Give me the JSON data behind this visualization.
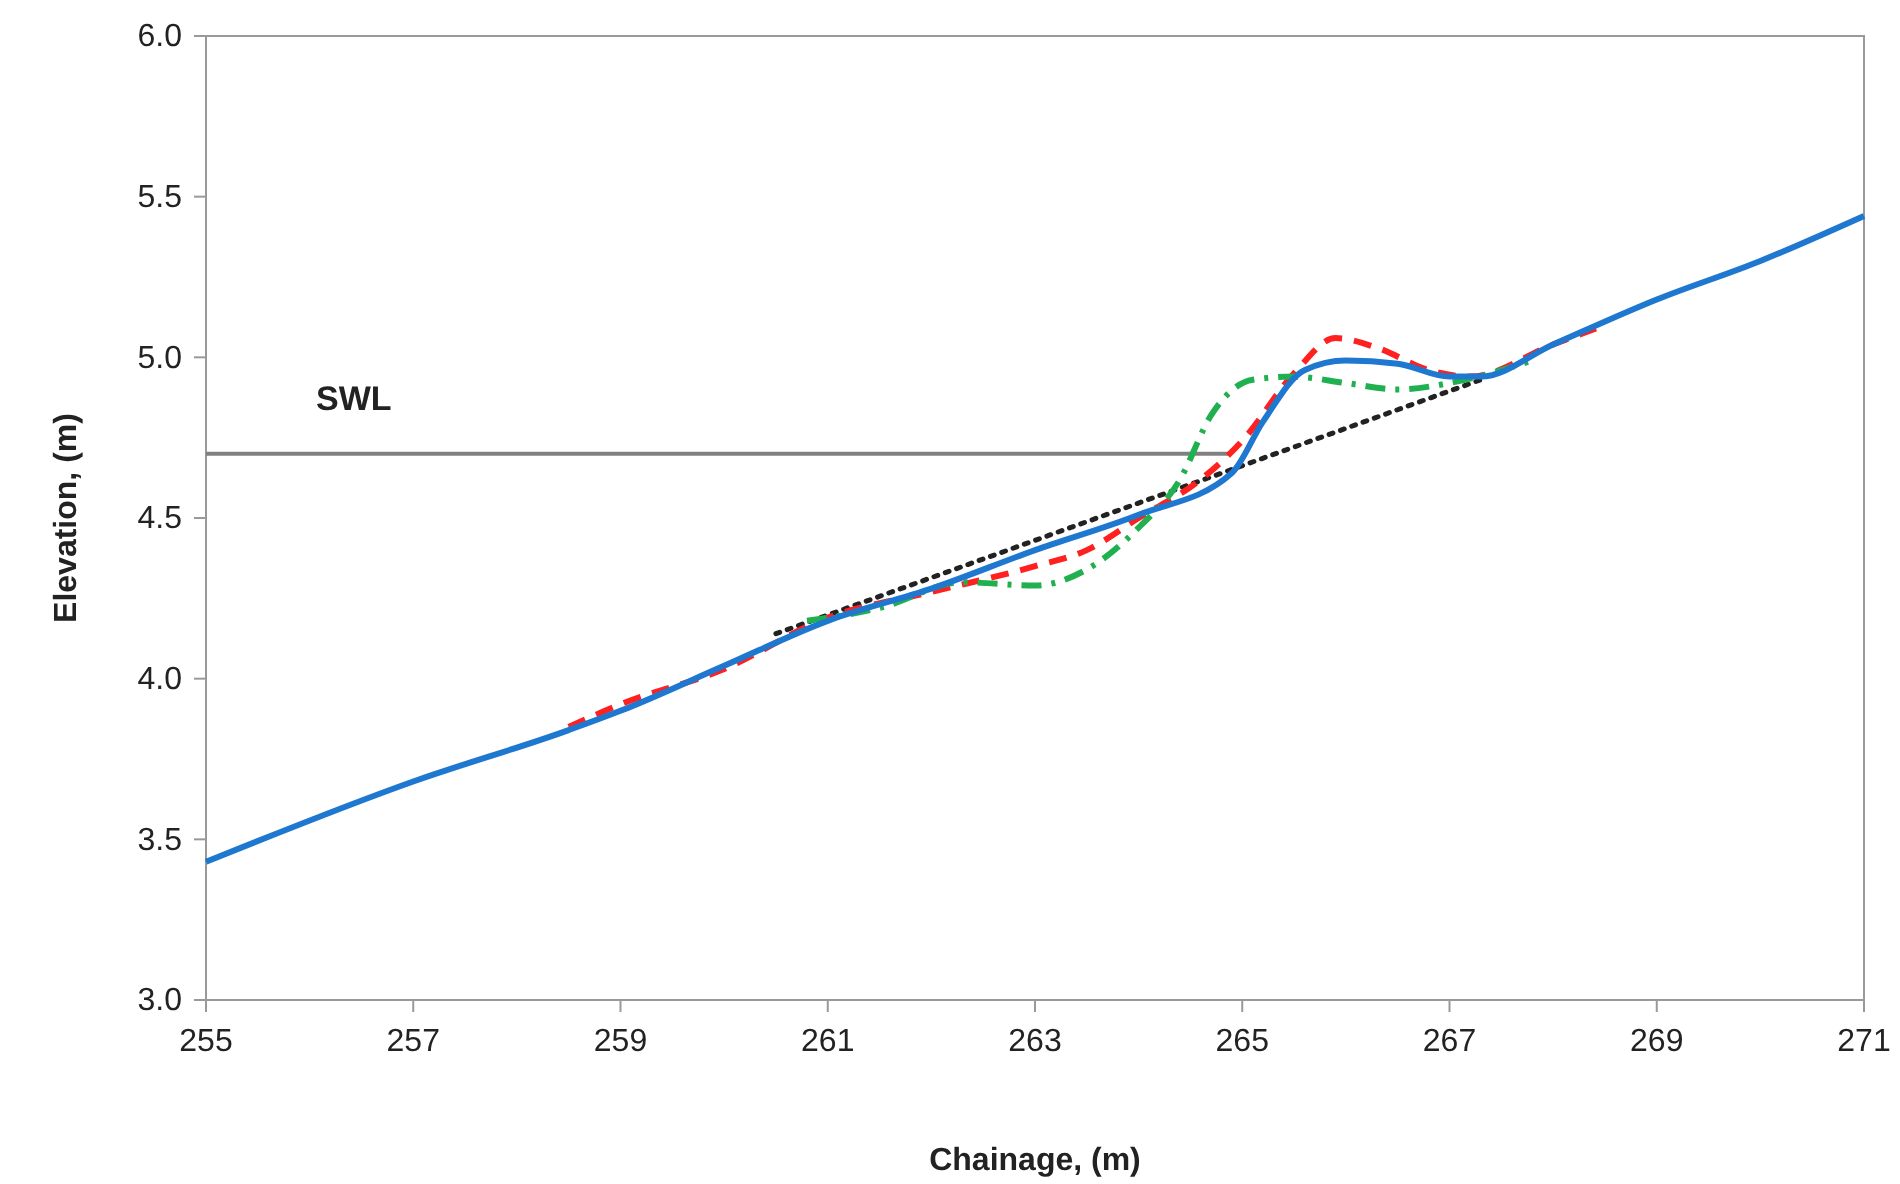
{
  "chart_data": {
    "type": "line",
    "xlabel": "Chainage, (m)",
    "ylabel": "Elevation, (m)",
    "xlim": [
      255,
      271
    ],
    "xticks": [
      255,
      257,
      259,
      261,
      263,
      265,
      267,
      269,
      271
    ],
    "ylim": [
      3.0,
      6.0
    ],
    "yticks": [
      {
        "value": 3.0,
        "label": "3.0"
      },
      {
        "value": 3.5,
        "label": "3.5"
      },
      {
        "value": 4.0,
        "label": "4.0"
      },
      {
        "value": 4.5,
        "label": "4.5"
      },
      {
        "value": 5.0,
        "label": "5.0"
      },
      {
        "value": 5.5,
        "label": "5.5"
      },
      {
        "value": 6.0,
        "label": "6.0"
      }
    ],
    "grid": false,
    "marker": "none",
    "series": [
      {
        "name": "SWL",
        "color": "#808080",
        "line_style": "solid",
        "x": [
          255,
          264.9
        ],
        "values": [
          4.7,
          4.7
        ]
      },
      {
        "color": "#222222",
        "line_style": "dotted",
        "x": [
          260.5,
          267.3
        ],
        "values": [
          4.14,
          4.93
        ]
      },
      {
        "color": "#ff2020",
        "line_style": "dashed",
        "x": [
          258.5,
          259,
          260,
          261,
          262,
          263,
          263.5,
          264,
          264.6,
          265,
          265.5,
          265.9,
          266.3,
          266.8,
          267.2,
          268,
          268.5
        ],
        "values": [
          3.85,
          3.92,
          4.03,
          4.19,
          4.27,
          4.35,
          4.4,
          4.5,
          4.62,
          4.74,
          4.95,
          5.06,
          5.03,
          4.96,
          4.94,
          5.04,
          5.1
        ]
      },
      {
        "color": "#20b050",
        "line_style": "dashdot",
        "x": [
          260.8,
          261.5,
          262.3,
          263,
          263.5,
          264,
          264.4,
          264.7,
          265.1,
          265.5,
          266,
          266.5,
          267,
          267.5,
          267.8
        ],
        "values": [
          4.18,
          4.22,
          4.3,
          4.29,
          4.34,
          4.47,
          4.62,
          4.82,
          4.93,
          4.94,
          4.92,
          4.9,
          4.92,
          4.96,
          4.99
        ]
      },
      {
        "color": "#1f78d0",
        "line_style": "solid",
        "x": [
          255,
          257,
          258.5,
          259,
          260,
          261,
          262,
          263,
          264,
          264.9,
          265.2,
          265.6,
          266,
          266.5,
          267,
          267.3,
          268,
          269,
          270,
          271
        ],
        "values": [
          3.43,
          3.68,
          3.84,
          3.9,
          4.04,
          4.18,
          4.28,
          4.4,
          4.51,
          4.64,
          4.8,
          4.96,
          4.99,
          4.98,
          4.94,
          4.94,
          5.04,
          5.18,
          5.3,
          5.44
        ]
      }
    ]
  }
}
